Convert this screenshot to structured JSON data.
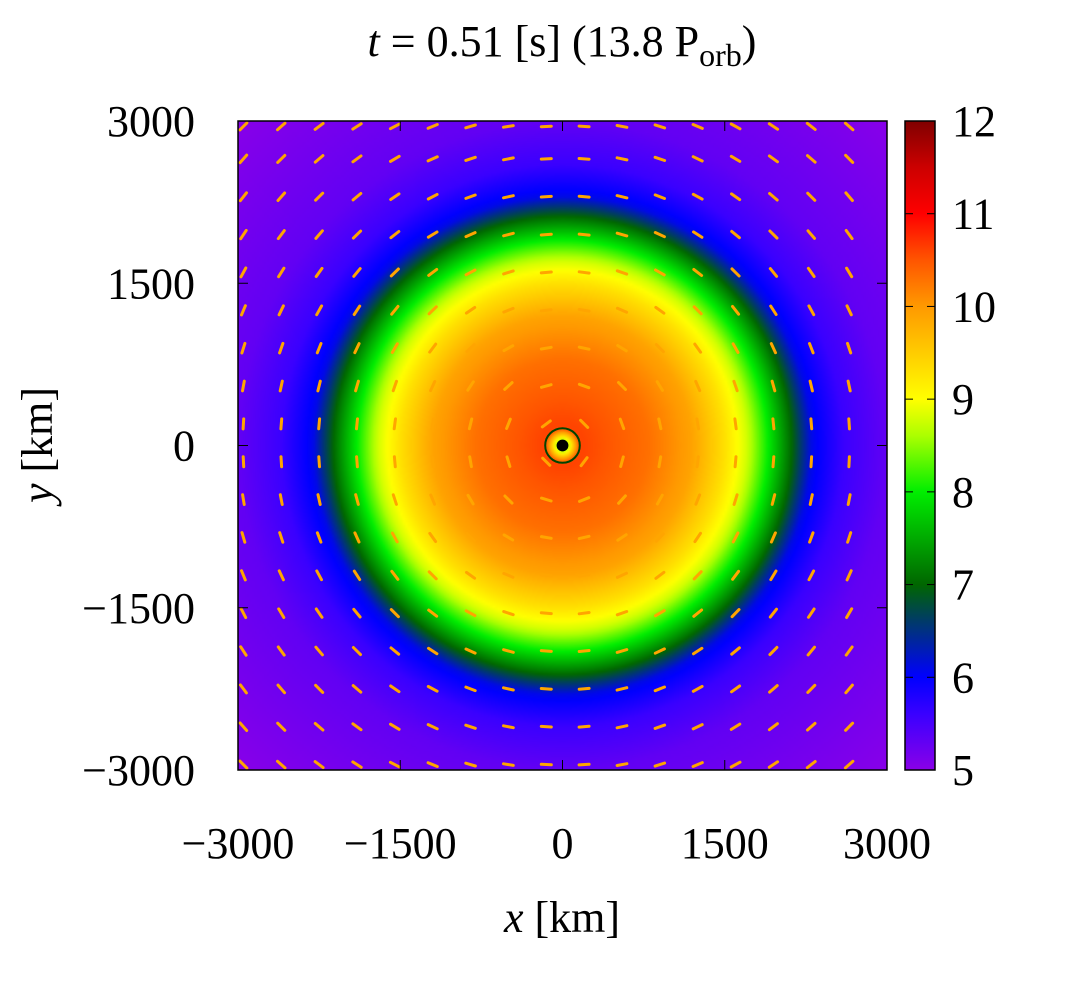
{
  "chart_data": {
    "type": "heatmap",
    "title": {
      "var": "t",
      "text": " = 0.51 [s] (13.8 P",
      "sub": "orb",
      "close": ")"
    },
    "xlabel": {
      "var": "x",
      "unit": " [km]"
    },
    "ylabel": {
      "var": "y",
      "unit": " [km]"
    },
    "xlim": [
      -3000,
      3000
    ],
    "ylim": [
      -3000,
      3000
    ],
    "x_ticks": [
      -3000,
      -1500,
      0,
      1500,
      3000
    ],
    "y_ticks": [
      -3000,
      -1500,
      0,
      1500,
      3000
    ],
    "x_tick_labels": [
      "−3000",
      "−1500",
      "0",
      "1500",
      "3000"
    ],
    "y_tick_labels": [
      "−3000",
      "−1500",
      "0",
      "1500",
      "3000"
    ],
    "colorbar": {
      "range": [
        5,
        12
      ],
      "ticks": [
        5,
        6,
        7,
        8,
        9,
        10,
        11,
        12
      ],
      "tick_labels": [
        "5",
        "6",
        "7",
        "8",
        "9",
        "10",
        "11",
        "12"
      ],
      "colormap": [
        {
          "value": 5.0,
          "color": "#8a00e8"
        },
        {
          "value": 5.6,
          "color": "#3a00ff"
        },
        {
          "value": 6.0,
          "color": "#0000ff"
        },
        {
          "value": 6.6,
          "color": "#003a6a"
        },
        {
          "value": 7.0,
          "color": "#006600"
        },
        {
          "value": 7.5,
          "color": "#00aa00"
        },
        {
          "value": 8.0,
          "color": "#00ee00"
        },
        {
          "value": 8.6,
          "color": "#aaff00"
        },
        {
          "value": 9.0,
          "color": "#ffff00"
        },
        {
          "value": 9.5,
          "color": "#ffcc00"
        },
        {
          "value": 10.0,
          "color": "#ff9900"
        },
        {
          "value": 10.5,
          "color": "#ff5500"
        },
        {
          "value": 11.0,
          "color": "#ff0000"
        },
        {
          "value": 11.5,
          "color": "#cc0000"
        },
        {
          "value": 12.0,
          "color": "#800000"
        }
      ]
    },
    "field_profile": {
      "description": "axisymmetric log-density vs radius (km)",
      "radius_km": [
        0,
        100,
        200,
        400,
        800,
        1200,
        1500,
        1700,
        1900,
        2100,
        2300,
        2600,
        3000,
        4300
      ],
      "value": [
        10.6,
        10.6,
        10.6,
        10.5,
        10.3,
        9.9,
        9.3,
        8.8,
        8.0,
        7.1,
        6.1,
        5.6,
        5.3,
        5.0
      ]
    },
    "core": {
      "x": 0,
      "y": 0,
      "inner_radius_km": 160,
      "core_radius_km": 55,
      "inner_value": 7.8
    },
    "vectors": {
      "color": "#ffa500",
      "grid_x": [
        -2950,
        -2600,
        -2250,
        -1900,
        -1550,
        -1200,
        -850,
        -500,
        -150,
        200,
        550,
        900,
        1250,
        1600,
        1950,
        2300,
        2650
      ],
      "grid_y": [
        -2950,
        -2600,
        -2250,
        -1900,
        -1550,
        -1200,
        -850,
        -500,
        -150,
        200,
        550,
        900,
        1250,
        1600,
        1950,
        2300,
        2650,
        2950
      ]
    }
  }
}
